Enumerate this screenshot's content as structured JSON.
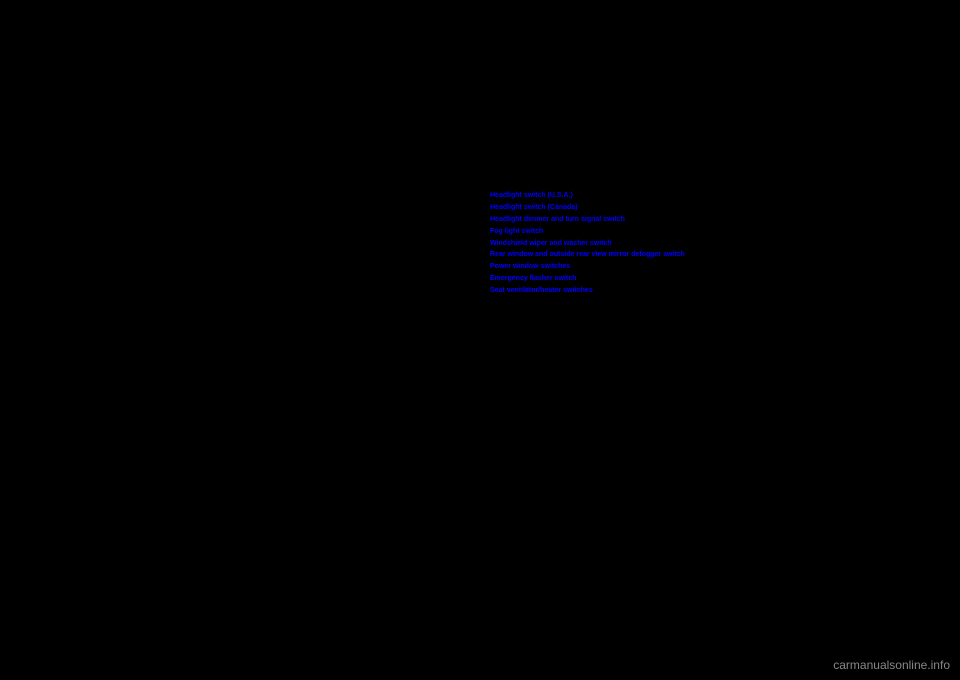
{
  "links": [
    "Headlight switch (U.S.A.)",
    "Headlight switch (Canada)",
    "Headlight dimmer and turn signal switch",
    "Fog light switch",
    "Windshield wiper and washer switch",
    "Rear window and outside rear view mirror defogger switch",
    "Power window switches",
    "Emergency flasher switch",
    "Seat ventilator/heater switches"
  ],
  "watermark": "carmanualsonline.info",
  "colors": {
    "background": "#000000",
    "link_color": "#0000ff",
    "watermark_color": "#888888"
  }
}
